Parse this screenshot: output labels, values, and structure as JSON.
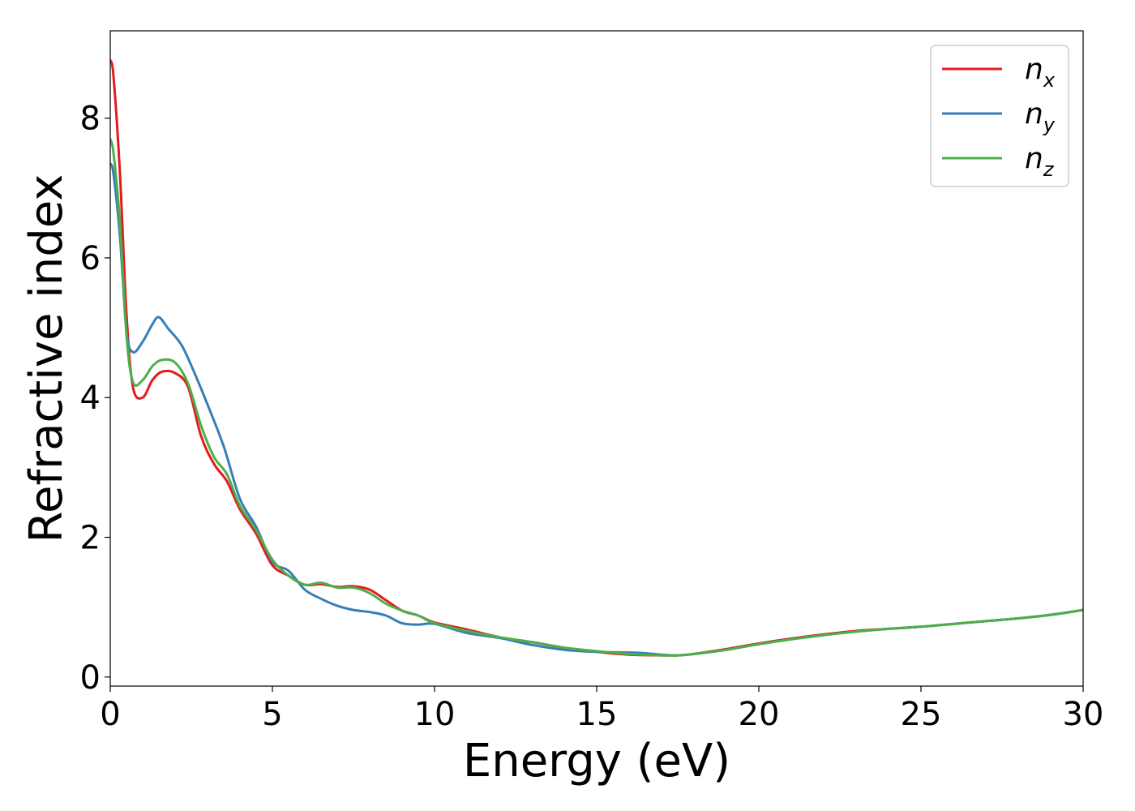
{
  "chart_data": {
    "type": "line",
    "xlabel": "Energy (eV)",
    "ylabel": "Refractive index",
    "xlim": [
      0,
      30
    ],
    "ylim": [
      -0.13,
      9.25
    ],
    "xticks": [
      0,
      5,
      10,
      15,
      20,
      25,
      30
    ],
    "yticks": [
      0,
      2,
      4,
      6,
      8
    ],
    "grid": false,
    "legend_position": "top-right",
    "series": [
      {
        "name": "n_x",
        "legend_base": "n",
        "legend_sub": "x",
        "color": "#e41a1c",
        "x": [
          0,
          0.1,
          0.3,
          0.5,
          0.7,
          1.0,
          1.3,
          1.6,
          2.0,
          2.4,
          2.8,
          3.2,
          3.6,
          4.0,
          4.5,
          5.0,
          5.5,
          6.0,
          6.5,
          7.0,
          7.5,
          8.0,
          8.5,
          9.0,
          9.5,
          10.0,
          11.0,
          12.0,
          13.0,
          14.0,
          15.0,
          16.0,
          17.0,
          17.5,
          18.0,
          19.0,
          20.0,
          21.0,
          22.0,
          23.0,
          24.0,
          25.0,
          26.0,
          27.0,
          28.0,
          29.0,
          30.0
        ],
        "y": [
          8.83,
          8.6,
          7.2,
          5.2,
          4.15,
          4.0,
          4.25,
          4.37,
          4.35,
          4.15,
          3.45,
          3.05,
          2.8,
          2.4,
          2.05,
          1.6,
          1.45,
          1.32,
          1.33,
          1.29,
          1.3,
          1.25,
          1.1,
          0.95,
          0.88,
          0.78,
          0.68,
          0.57,
          0.5,
          0.42,
          0.36,
          0.32,
          0.31,
          0.31,
          0.33,
          0.4,
          0.48,
          0.55,
          0.61,
          0.66,
          0.69,
          0.72,
          0.76,
          0.8,
          0.84,
          0.89,
          0.96
        ]
      },
      {
        "name": "n_y",
        "legend_base": "n",
        "legend_sub": "y",
        "color": "#377eb8",
        "x": [
          0,
          0.1,
          0.3,
          0.5,
          0.7,
          1.0,
          1.3,
          1.5,
          1.8,
          2.2,
          2.6,
          3.0,
          3.5,
          4.0,
          4.5,
          5.0,
          5.5,
          6.0,
          6.5,
          7.0,
          7.5,
          8.0,
          8.5,
          9.0,
          9.5,
          10.0,
          11.0,
          12.0,
          13.0,
          14.0,
          15.0,
          16.0,
          16.5,
          17.0,
          17.5,
          18.0,
          19.0,
          20.0,
          21.0,
          22.0,
          23.0,
          24.0,
          25.0,
          26.0,
          27.0,
          28.0,
          29.0,
          30.0
        ],
        "y": [
          7.35,
          7.2,
          6.3,
          4.95,
          4.65,
          4.8,
          5.05,
          5.15,
          4.98,
          4.75,
          4.35,
          3.9,
          3.3,
          2.55,
          2.15,
          1.65,
          1.52,
          1.25,
          1.12,
          1.02,
          0.96,
          0.93,
          0.88,
          0.77,
          0.75,
          0.76,
          0.63,
          0.56,
          0.46,
          0.39,
          0.36,
          0.35,
          0.34,
          0.32,
          0.31,
          0.33,
          0.39,
          0.47,
          0.54,
          0.6,
          0.65,
          0.69,
          0.72,
          0.76,
          0.8,
          0.84,
          0.89,
          0.96
        ]
      },
      {
        "name": "n_z",
        "legend_base": "n",
        "legend_sub": "z",
        "color": "#4daf4a",
        "x": [
          0,
          0.1,
          0.3,
          0.5,
          0.7,
          1.0,
          1.3,
          1.6,
          2.0,
          2.4,
          2.8,
          3.2,
          3.6,
          4.0,
          4.5,
          5.0,
          5.5,
          6.0,
          6.5,
          7.0,
          7.5,
          8.0,
          8.5,
          9.0,
          9.5,
          10.0,
          11.0,
          12.0,
          13.0,
          14.0,
          15.0,
          16.0,
          17.0,
          17.5,
          18.0,
          19.0,
          20.0,
          21.0,
          22.0,
          23.0,
          24.0,
          25.0,
          26.0,
          27.0,
          28.0,
          29.0,
          30.0
        ],
        "y": [
          7.7,
          7.5,
          6.5,
          4.9,
          4.22,
          4.25,
          4.45,
          4.54,
          4.5,
          4.2,
          3.6,
          3.15,
          2.9,
          2.45,
          2.1,
          1.68,
          1.45,
          1.32,
          1.35,
          1.28,
          1.28,
          1.2,
          1.05,
          0.95,
          0.88,
          0.77,
          0.66,
          0.57,
          0.5,
          0.42,
          0.37,
          0.33,
          0.31,
          0.31,
          0.33,
          0.39,
          0.47,
          0.54,
          0.6,
          0.65,
          0.69,
          0.72,
          0.76,
          0.8,
          0.84,
          0.89,
          0.96
        ]
      }
    ]
  }
}
